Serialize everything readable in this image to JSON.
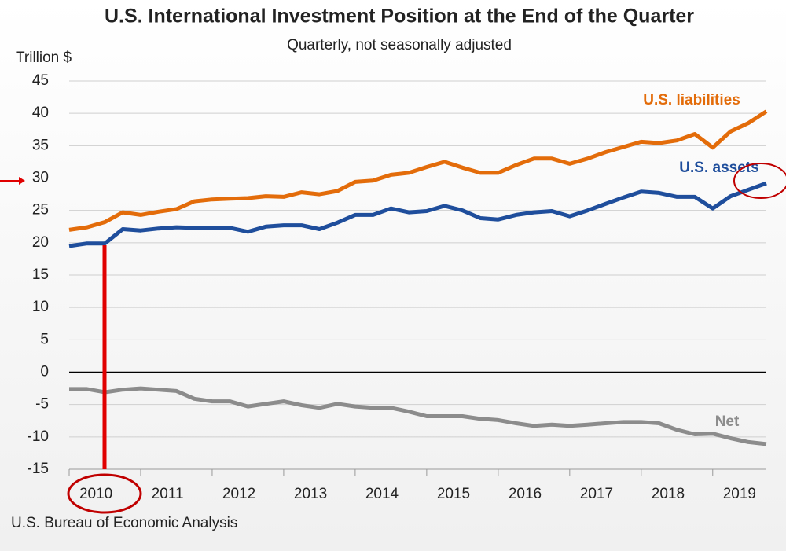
{
  "chart_data": {
    "type": "line",
    "title": "U.S. International Investment Position at the End of the Quarter",
    "subtitle": "Quarterly, not seasonally adjusted",
    "y_label": "Trillion $",
    "source": "U.S. Bureau of Economic Analysis",
    "categories": [
      "2010",
      null,
      null,
      null,
      "2011",
      null,
      null,
      null,
      "2012",
      null,
      null,
      null,
      "2013",
      null,
      null,
      null,
      "2014",
      null,
      null,
      null,
      "2015",
      null,
      null,
      null,
      "2016",
      null,
      null,
      null,
      "2017",
      null,
      null,
      null,
      "2018",
      null,
      null,
      null,
      "2019",
      null,
      null,
      null
    ],
    "series": [
      {
        "name": "U.S. liabilities",
        "color": "#e36c0a",
        "values": [
          22.0,
          22.4,
          23.2,
          24.7,
          24.3,
          24.8,
          25.2,
          26.4,
          26.7,
          26.8,
          26.9,
          27.2,
          27.1,
          27.8,
          27.5,
          28.0,
          29.4,
          29.6,
          30.5,
          30.8,
          31.7,
          32.5,
          31.6,
          30.8,
          30.8,
          32.0,
          33.0,
          33.0,
          32.2,
          33.0,
          34.0,
          34.8,
          35.6,
          35.4,
          35.8,
          36.8,
          34.7,
          37.2,
          38.5,
          40.3
        ]
      },
      {
        "name": "U.S. assets",
        "color": "#1f4e9c",
        "values": [
          19.5,
          19.9,
          19.9,
          22.1,
          21.9,
          22.2,
          22.4,
          22.3,
          22.3,
          22.3,
          21.7,
          22.5,
          22.7,
          22.7,
          22.1,
          23.1,
          24.3,
          24.3,
          25.3,
          24.7,
          24.9,
          25.7,
          25.0,
          23.8,
          23.6,
          24.3,
          24.7,
          24.9,
          24.1,
          25.0,
          26.0,
          27.0,
          27.9,
          27.7,
          27.1,
          27.1,
          25.3,
          27.2,
          28.2,
          29.2
        ]
      },
      {
        "name": "Net",
        "color": "#8c8c8c",
        "values": [
          -2.6,
          -2.6,
          -3.1,
          -2.7,
          -2.5,
          -2.7,
          -2.9,
          -4.1,
          -4.5,
          -4.5,
          -5.3,
          -4.9,
          -4.5,
          -5.1,
          -5.5,
          -4.9,
          -5.3,
          -5.5,
          -5.5,
          -6.1,
          -6.8,
          -6.8,
          -6.8,
          -7.2,
          -7.4,
          -7.9,
          -8.3,
          -8.1,
          -8.3,
          -8.1,
          -7.9,
          -7.7,
          -7.7,
          -7.9,
          -8.9,
          -9.6,
          -9.5,
          -10.2,
          -10.8,
          -11.1
        ]
      }
    ],
    "ylim": [
      -15,
      45
    ],
    "yticks": [
      -15,
      -10,
      -5,
      0,
      5,
      10,
      15,
      20,
      25,
      30,
      35,
      40,
      45
    ],
    "grid": true
  }
}
